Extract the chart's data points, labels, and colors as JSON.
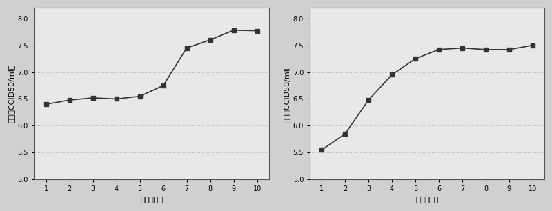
{
  "left_x": [
    1,
    2,
    3,
    4,
    5,
    6,
    7,
    8,
    9,
    10
  ],
  "left_y": [
    6.4,
    6.48,
    6.52,
    6.5,
    6.55,
    6.75,
    7.45,
    7.6,
    7.78,
    7.77
  ],
  "right_x": [
    1,
    2,
    3,
    4,
    5,
    6,
    7,
    8,
    9,
    10
  ],
  "right_y": [
    5.55,
    5.85,
    6.48,
    6.95,
    7.25,
    7.42,
    7.45,
    7.42,
    7.42,
    7.5
  ],
  "xlabel": "代次（代）",
  "ylabel": "滴度（CCID50/ml）",
  "ylim": [
    5,
    8.2
  ],
  "yticks": [
    5,
    5.5,
    6,
    6.5,
    7,
    7.5,
    8
  ],
  "xticks": [
    1,
    2,
    3,
    4,
    5,
    6,
    7,
    8,
    9,
    10
  ],
  "line_color": "#333333",
  "marker": "s",
  "markersize": 4,
  "linewidth": 1.2,
  "bg_color": "#e8e8e8",
  "fig_bg": "#d0d0d0"
}
